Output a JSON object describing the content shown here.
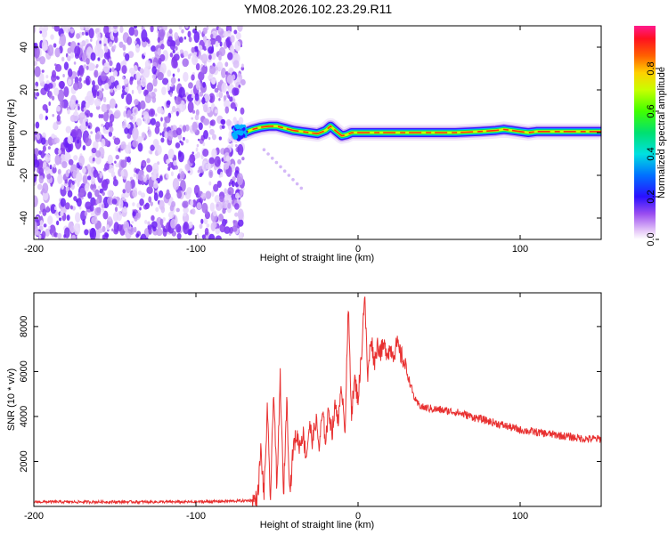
{
  "title": "YM08.2026.102.23.29.R11",
  "chart_data": [
    {
      "type": "heatmap",
      "name": "spectrogram",
      "xlabel": "Height of straight line (km)",
      "ylabel": "Frequency (Hz)",
      "xlim": [
        -200,
        150
      ],
      "ylim": [
        -50,
        50
      ],
      "xticks": [
        -200,
        -100,
        0,
        100
      ],
      "yticks": [
        -40,
        -20,
        0,
        20,
        40
      ],
      "colorbar": {
        "label": "Normalized spectral amplitude",
        "range": [
          0,
          1
        ],
        "ticks": [
          "0.0",
          "0.2",
          "0.4",
          "0.6",
          "0.8"
        ]
      },
      "noise_region_x": [
        -200,
        -73
      ],
      "signal_band": {
        "x": [
          -75,
          -70,
          -65,
          -60,
          -55,
          -50,
          -45,
          -40,
          -35,
          -30,
          -25,
          -20,
          -17,
          -14,
          -10,
          -7,
          -4,
          0,
          10,
          20,
          40,
          60,
          75,
          85,
          90,
          95,
          100,
          105,
          110,
          120,
          130,
          140,
          150
        ],
        "freq": [
          -1,
          0,
          1.5,
          2.5,
          3,
          3,
          2,
          1,
          0.5,
          0,
          -0.5,
          1,
          3,
          1,
          -1.5,
          -1,
          0,
          0,
          0,
          0,
          0,
          0,
          0.5,
          1,
          1.5,
          1,
          0.5,
          0,
          0.5,
          0.5,
          0.5,
          0.5,
          0.5
        ]
      },
      "faint_streak": {
        "x": [
          -58,
          -35
        ],
        "freq": [
          -8,
          -26
        ]
      }
    },
    {
      "type": "line",
      "name": "snr",
      "xlabel": "Height of straight line (km)",
      "ylabel": "SNR (10 * v/v)",
      "xlim": [
        -200,
        150
      ],
      "ylim": [
        0,
        9500
      ],
      "xticks": [
        -200,
        -100,
        0,
        100
      ],
      "yticks": [
        2000,
        4000,
        6000,
        8000
      ],
      "series": [
        {
          "name": "SNR",
          "color": "#e83030",
          "x": [
            -200,
            -150,
            -100,
            -70,
            -62,
            -60,
            -58,
            -56,
            -54,
            -52,
            -50,
            -48,
            -46,
            -44,
            -42,
            -40,
            -38,
            -36,
            -34,
            -32,
            -30,
            -28,
            -26,
            -24,
            -22,
            -20,
            -18,
            -16,
            -14,
            -12,
            -10,
            -8,
            -6,
            -4,
            -2,
            0,
            2,
            4,
            6,
            8,
            10,
            12,
            14,
            16,
            18,
            20,
            22,
            24,
            26,
            28,
            30,
            32,
            34,
            36,
            40,
            50,
            60,
            70,
            80,
            90,
            100,
            110,
            120,
            130,
            140,
            150
          ],
          "y": [
            200,
            200,
            200,
            250,
            300,
            2500,
            500,
            4200,
            300,
            5300,
            600,
            5800,
            400,
            4800,
            600,
            2600,
            3200,
            2700,
            3300,
            2200,
            3600,
            2900,
            3900,
            2600,
            4100,
            3000,
            4300,
            3300,
            4500,
            3900,
            5300,
            3500,
            8800,
            4200,
            5600,
            4800,
            6600,
            9500,
            5700,
            7600,
            6400,
            7200,
            6900,
            7100,
            6900,
            7000,
            6800,
            7200,
            6800,
            6500,
            6000,
            5500,
            5000,
            4600,
            4400,
            4300,
            4200,
            4000,
            3800,
            3600,
            3400,
            3300,
            3200,
            3100,
            3000,
            3000
          ]
        }
      ]
    }
  ]
}
